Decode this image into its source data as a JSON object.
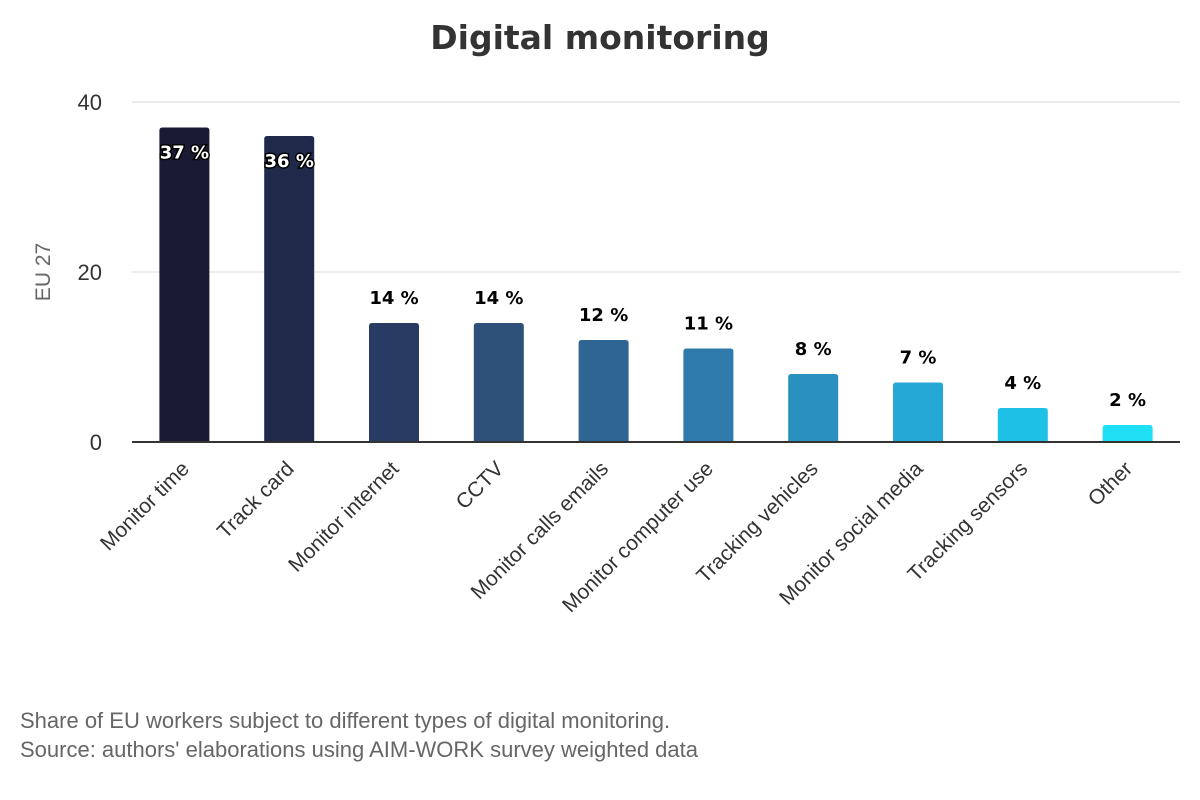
{
  "chart_data": {
    "type": "bar",
    "title": "Digital monitoring",
    "xlabel": "",
    "ylabel": "EU 27",
    "ylim": [
      0,
      40
    ],
    "yticks": [
      0,
      20,
      40
    ],
    "grid": true,
    "categories": [
      "Monitor time",
      "Track card",
      "Monitor internet",
      "CCTV",
      "Monitor calls emails",
      "Monitor computer use",
      "Tracking vehicles",
      "Monitor social media",
      "Tracking sensors",
      "Other"
    ],
    "values": [
      37,
      36,
      14,
      14,
      12,
      11,
      8,
      7,
      4,
      2
    ],
    "data_labels": [
      "37 %",
      "36 %",
      "14 %",
      "14 %",
      "12 %",
      "11 %",
      "8 %",
      "7 %",
      "4 %",
      "2 %"
    ],
    "colors": [
      "#1b1a35",
      "#1f2a4b",
      "#283b63",
      "#2d5179",
      "#2e6592",
      "#2e7aaa",
      "#2a90c0",
      "#25a8d6",
      "#1fc0e6",
      "#1fdff5"
    ],
    "legend": "none"
  },
  "caption": {
    "line1": "Share of EU workers subject to different types of digital monitoring.",
    "line2": "Source: authors' elaborations using AIM-WORK survey weighted data"
  }
}
